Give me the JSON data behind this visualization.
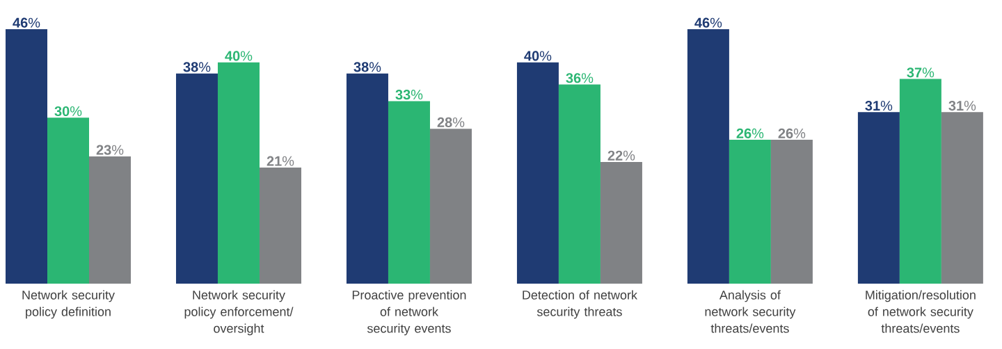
{
  "chart_data": {
    "type": "bar",
    "categories": [
      "Network security policy definition",
      "Network security policy enforcement/ oversight",
      "Proactive prevention of network security events",
      "Detection of network security threats",
      "Analysis of network security threats/events",
      "Mitigation/resolution of network security threats/events"
    ],
    "series": [
      {
        "color": "#1f3b73",
        "values": [
          46,
          38,
          38,
          40,
          46,
          31
        ],
        "value_labels": [
          "**46**%",
          "**38**%",
          "**38**%",
          "**40**%",
          "**46**%",
          "**31**%"
        ]
      },
      {
        "color": "#2bb673",
        "values": [
          30,
          40,
          33,
          36,
          26,
          37
        ],
        "value_labels": [
          "**30**%",
          "**40**%",
          "**33**%",
          "**36**%",
          "**26**%",
          "**37**%"
        ]
      },
      {
        "color": "#808285",
        "values": [
          23,
          21,
          28,
          22,
          26,
          31
        ],
        "value_labels": [
          "**23**%",
          "**21**%",
          "**28**%",
          "**22**%",
          "**26**%",
          "**31**%"
        ]
      }
    ]
  }
}
